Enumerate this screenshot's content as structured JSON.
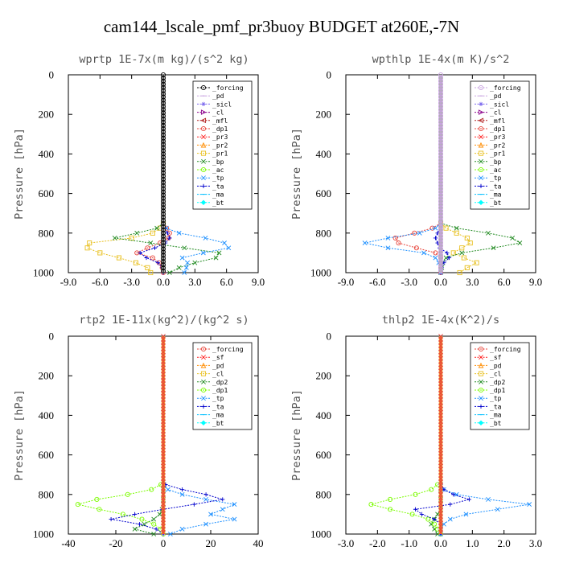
{
  "figure": {
    "title": "cam144_lscale_pmf_pr3buoy  BUDGET at260E,-7N"
  },
  "chart_data": [
    {
      "type": "line",
      "title": "wprtp  1E-7x(m kg)/(s^2 kg)",
      "ylabel": "Pressure [hPa]",
      "xlim": [
        -9,
        9
      ],
      "ylim": [
        1000,
        0
      ],
      "xticks": [
        "-9.0",
        "-6.0",
        "-3.0",
        "0.0",
        "3.0",
        "6.0",
        "9.0"
      ],
      "yticks": [
        "0",
        "200",
        "400",
        "600",
        "800",
        "1000"
      ],
      "legend_position": "top-right",
      "y": [
        750,
        775,
        800,
        825,
        850,
        875,
        900,
        925,
        950,
        975,
        1000
      ],
      "series": [
        {
          "name": "_forcing",
          "color": "#000000",
          "marker": "o",
          "values": [
            0,
            0,
            0,
            0,
            0,
            0,
            0,
            0,
            0,
            0,
            0
          ]
        },
        {
          "name": "_pd",
          "color": "#c8a2e0",
          "marker": "-",
          "values": [
            0,
            0,
            0,
            0,
            0,
            0,
            0,
            0,
            0,
            0,
            0
          ]
        },
        {
          "name": "_sicl",
          "color": "#7b68ee",
          "marker": "*",
          "values": [
            0,
            0,
            0,
            0,
            0,
            0,
            0,
            0,
            0,
            0,
            0
          ]
        },
        {
          "name": "_cl",
          "color": "#8b008b",
          "marker": ">",
          "values": [
            0,
            0,
            0,
            0,
            0,
            0,
            0,
            0,
            0,
            0,
            0
          ]
        },
        {
          "name": "_mfl",
          "color": "#b22222",
          "marker": "<",
          "values": [
            0,
            0,
            0,
            0,
            0,
            0,
            0,
            0,
            0,
            0,
            0
          ]
        },
        {
          "name": "_dp1",
          "color": "#e8443a",
          "marker": "o",
          "values": [
            0,
            0.3,
            0.6,
            0.5,
            -0.3,
            -1.5,
            -2.5,
            -1.0,
            -0.4,
            -0.1,
            0
          ]
        },
        {
          "name": "_pr3",
          "color": "#ff2020",
          "marker": "x",
          "values": [
            0,
            0,
            0,
            0,
            0,
            0,
            0,
            0,
            0,
            0,
            0
          ]
        },
        {
          "name": "_pr2",
          "color": "#ff8c00",
          "marker": "^",
          "values": [
            0,
            0,
            0,
            0,
            0,
            0,
            0,
            0,
            0,
            0,
            0
          ]
        },
        {
          "name": "_pr1",
          "color": "#e8c020",
          "marker": "s",
          "values": [
            0,
            -0.3,
            -1.0,
            -3.0,
            -7.0,
            -7.2,
            -6.0,
            -4.2,
            -2.6,
            -1.5,
            -1.2
          ]
        },
        {
          "name": "_bp",
          "color": "#228b22",
          "marker": "x",
          "values": [
            0,
            -0.6,
            -2.5,
            -4.6,
            -1.2,
            2.0,
            5.3,
            5.0,
            3.0,
            1.5,
            0.6
          ]
        },
        {
          "name": "_ac",
          "color": "#7cfc00",
          "marker": "o",
          "values": [
            0,
            0,
            0,
            0,
            0,
            0,
            0,
            0,
            0,
            0,
            0
          ]
        },
        {
          "name": "_tp",
          "color": "#1e90ff",
          "marker": "x",
          "values": [
            0,
            0.3,
            1.5,
            4.0,
            5.8,
            6.2,
            3.8,
            1.8,
            2.3,
            2.2,
            2.0
          ]
        },
        {
          "name": "_ta",
          "color": "#0000cd",
          "marker": "+",
          "values": [
            0,
            0.1,
            0.4,
            0.6,
            0.2,
            -0.8,
            -2.2,
            -1.6,
            -0.5,
            -0.1,
            0
          ]
        },
        {
          "name": "_ma",
          "color": "#00bfff",
          "marker": "-",
          "values": [
            0,
            0,
            0,
            0,
            0,
            0,
            0,
            0,
            0,
            0,
            0
          ]
        },
        {
          "name": "_bt",
          "color": "#00ffff",
          "marker": "d",
          "values": [
            0,
            0,
            0,
            0,
            0,
            0,
            0,
            0,
            0,
            0,
            0
          ]
        }
      ]
    },
    {
      "type": "line",
      "title": "wpthlp  1E-4x(m K)/s^2",
      "ylabel": "Pressure [hPa]",
      "xlim": [
        -9,
        9
      ],
      "ylim": [
        1000,
        0
      ],
      "xticks": [
        "-9.0",
        "-6.0",
        "-3.0",
        "0.0",
        "3.0",
        "6.0",
        "9.0"
      ],
      "yticks": [
        "0",
        "200",
        "400",
        "600",
        "800",
        "1000"
      ],
      "legend_position": "top-right",
      "y": [
        750,
        775,
        800,
        825,
        850,
        875,
        900,
        925,
        950,
        975,
        1000
      ],
      "series": [
        {
          "name": "_forcing",
          "color": "#c8a2e0",
          "marker": "o",
          "values": [
            0,
            0,
            0,
            0,
            0,
            0,
            0,
            0,
            0,
            0,
            0
          ]
        },
        {
          "name": "_pd",
          "color": "#c8a2e0",
          "marker": "-",
          "values": [
            0,
            0,
            0,
            0,
            0,
            0,
            0,
            0,
            0,
            0,
            0
          ]
        },
        {
          "name": "_sicl",
          "color": "#7b68ee",
          "marker": "*",
          "values": [
            0,
            0,
            0,
            0,
            0,
            0,
            0,
            0,
            0,
            0,
            0
          ]
        },
        {
          "name": "_cl",
          "color": "#8b008b",
          "marker": ">",
          "values": [
            0,
            0,
            0,
            0,
            0,
            0,
            0,
            0,
            0,
            0,
            0
          ]
        },
        {
          "name": "_mfl",
          "color": "#b22222",
          "marker": "<",
          "values": [
            0,
            0,
            0,
            0,
            0,
            0,
            0,
            0,
            0,
            0,
            0
          ]
        },
        {
          "name": "_dp1",
          "color": "#e8443a",
          "marker": "o",
          "values": [
            0,
            -0.8,
            -2.5,
            -4.3,
            -4.0,
            -2.3,
            -0.5,
            0,
            0,
            0,
            0
          ]
        },
        {
          "name": "_pr3",
          "color": "#ff2020",
          "marker": "x",
          "values": [
            0,
            0,
            0,
            0,
            0,
            0,
            0,
            0,
            0,
            0,
            0
          ]
        },
        {
          "name": "_pr2",
          "color": "#ff8c00",
          "marker": "^",
          "values": [
            0,
            0,
            0,
            0,
            0,
            0,
            0,
            0,
            0,
            0,
            0
          ]
        },
        {
          "name": "_pr1",
          "color": "#e8c020",
          "marker": "s",
          "values": [
            0,
            0.5,
            1.5,
            2.5,
            2.8,
            2.0,
            1.2,
            2.2,
            3.4,
            2.5,
            1.8
          ]
        },
        {
          "name": "_bp",
          "color": "#228b22",
          "marker": "x",
          "values": [
            0,
            1.5,
            4.5,
            6.8,
            7.5,
            5.0,
            2.0,
            0.5,
            0.2,
            0.1,
            0
          ]
        },
        {
          "name": "_ac",
          "color": "#7cfc00",
          "marker": "o",
          "values": [
            0,
            0,
            0,
            0,
            0,
            0,
            0,
            0,
            0,
            0,
            0
          ]
        },
        {
          "name": "_tp",
          "color": "#1e90ff",
          "marker": "x",
          "values": [
            0,
            -0.5,
            -2.0,
            -5.0,
            -7.2,
            -5.0,
            -1.6,
            -0.5,
            -0.2,
            0,
            0
          ]
        },
        {
          "name": "_ta",
          "color": "#0000cd",
          "marker": "+",
          "values": [
            0,
            0,
            -0.3,
            -0.5,
            -0.3,
            -0.1,
            0.6,
            0.8,
            0.3,
            0.1,
            0
          ]
        },
        {
          "name": "_ma",
          "color": "#00bfff",
          "marker": "-",
          "values": [
            0,
            0,
            0,
            0,
            0,
            0,
            0,
            0,
            0,
            0,
            0
          ]
        },
        {
          "name": "_bt",
          "color": "#00ffff",
          "marker": "d",
          "values": [
            0,
            0,
            0,
            0,
            0,
            0,
            0,
            0,
            0,
            0,
            0
          ]
        }
      ]
    },
    {
      "type": "line",
      "title": "rtp2  1E-11x(kg^2)/(kg^2 s)",
      "ylabel": "Pressure [hPa]",
      "xlim": [
        -40,
        40
      ],
      "ylim": [
        1000,
        0
      ],
      "xticks": [
        "-40",
        "-20",
        "0",
        "20",
        "40"
      ],
      "yticks": [
        "0",
        "200",
        "400",
        "600",
        "800",
        "1000"
      ],
      "legend_position": "top-right",
      "y": [
        750,
        775,
        800,
        825,
        850,
        875,
        900,
        925,
        950,
        975,
        1000
      ],
      "series": [
        {
          "name": "_forcing",
          "color": "#e8443a",
          "marker": "o",
          "values": [
            0,
            0,
            0,
            0,
            0,
            0,
            0,
            0,
            0,
            0,
            0
          ]
        },
        {
          "name": "_sf",
          "color": "#ff2020",
          "marker": "x",
          "values": [
            0,
            0,
            0,
            0,
            0,
            0,
            0,
            0,
            0,
            0,
            0
          ]
        },
        {
          "name": "_pd",
          "color": "#ff8c00",
          "marker": "^",
          "values": [
            0,
            0,
            0,
            0,
            0,
            0,
            0,
            0,
            0,
            0,
            0
          ]
        },
        {
          "name": "_cl",
          "color": "#e8c020",
          "marker": "s",
          "values": [
            0,
            0,
            0,
            0,
            0,
            0,
            0,
            0,
            0,
            0,
            0
          ]
        },
        {
          "name": "_dp2",
          "color": "#228b22",
          "marker": "x",
          "values": [
            0,
            0,
            0,
            0,
            0,
            -0.5,
            -1.5,
            -4.0,
            -8.0,
            -12.0,
            -4.0
          ]
        },
        {
          "name": "_dp1",
          "color": "#7cfc00",
          "marker": "o",
          "values": [
            -1,
            -5,
            -15,
            -28,
            -36,
            -27,
            -17,
            -9,
            -4,
            -1,
            0
          ]
        },
        {
          "name": "_tp",
          "color": "#1e90ff",
          "marker": "x",
          "values": [
            0,
            2,
            8,
            18,
            30,
            25,
            20,
            30,
            18,
            8,
            3
          ]
        },
        {
          "name": "_ta",
          "color": "#0000cd",
          "marker": "+",
          "values": [
            1,
            8,
            18,
            25,
            13,
            0,
            -12,
            -22,
            -10,
            -3,
            0
          ]
        },
        {
          "name": "_ma",
          "color": "#00bfff",
          "marker": "-",
          "values": [
            0,
            0,
            0,
            0,
            0,
            0,
            0,
            0,
            0,
            0,
            0
          ]
        },
        {
          "name": "_bt",
          "color": "#00ffff",
          "marker": "d",
          "values": [
            0,
            0,
            0,
            0,
            0,
            0,
            0,
            0,
            0,
            0,
            0
          ]
        }
      ]
    },
    {
      "type": "line",
      "title": "thlp2  1E-4x(K^2)/s",
      "ylabel": "Pressure [hPa]",
      "xlim": [
        -3,
        3
      ],
      "ylim": [
        1000,
        0
      ],
      "xticks": [
        "-3.0",
        "-2.0",
        "-1.0",
        "0.0",
        "1.0",
        "2.0",
        "3.0"
      ],
      "yticks": [
        "0",
        "200",
        "400",
        "600",
        "800",
        "1000"
      ],
      "legend_position": "top-right",
      "y": [
        750,
        775,
        800,
        825,
        850,
        875,
        900,
        925,
        950,
        975,
        1000
      ],
      "series": [
        {
          "name": "_forcing",
          "color": "#e8443a",
          "marker": "o",
          "values": [
            0,
            0,
            0,
            0,
            0,
            0,
            0,
            0,
            0,
            0,
            0
          ]
        },
        {
          "name": "_sf",
          "color": "#ff2020",
          "marker": "x",
          "values": [
            0,
            0,
            0,
            0,
            0,
            0,
            0,
            0,
            0,
            0,
            0
          ]
        },
        {
          "name": "_pd",
          "color": "#ff8c00",
          "marker": "^",
          "values": [
            0,
            0,
            0,
            0,
            0,
            0,
            0,
            0,
            0,
            0,
            0
          ]
        },
        {
          "name": "_cl",
          "color": "#e8c020",
          "marker": "s",
          "values": [
            0,
            0,
            0,
            0,
            0,
            0,
            0,
            0,
            0,
            0,
            0
          ]
        },
        {
          "name": "_dp2",
          "color": "#228b22",
          "marker": "x",
          "values": [
            0,
            0,
            0,
            0,
            0,
            0,
            -0.1,
            -0.2,
            -0.3,
            -0.2,
            -0.1
          ]
        },
        {
          "name": "_dp1",
          "color": "#7cfc00",
          "marker": "o",
          "values": [
            -0.1,
            -0.3,
            -0.8,
            -1.6,
            -2.2,
            -1.6,
            -0.9,
            -0.4,
            -0.2,
            -0.1,
            0
          ]
        },
        {
          "name": "_tp",
          "color": "#1e90ff",
          "marker": "x",
          "values": [
            0,
            0.1,
            0.5,
            1.5,
            2.8,
            1.8,
            0.8,
            0.3,
            0.1,
            0,
            0
          ]
        },
        {
          "name": "_ta",
          "color": "#0000cd",
          "marker": "+",
          "values": [
            0,
            0.1,
            0.4,
            0.9,
            0.3,
            -0.8,
            -0.6,
            -0.2,
            0,
            0,
            0
          ]
        },
        {
          "name": "_ma",
          "color": "#00bfff",
          "marker": "-",
          "values": [
            0,
            0,
            0,
            0,
            0,
            0,
            0,
            0,
            0,
            0,
            0
          ]
        },
        {
          "name": "_bt",
          "color": "#00ffff",
          "marker": "d",
          "values": [
            0,
            0,
            0,
            0,
            0,
            0,
            0,
            0,
            0,
            0,
            0
          ]
        }
      ]
    }
  ]
}
